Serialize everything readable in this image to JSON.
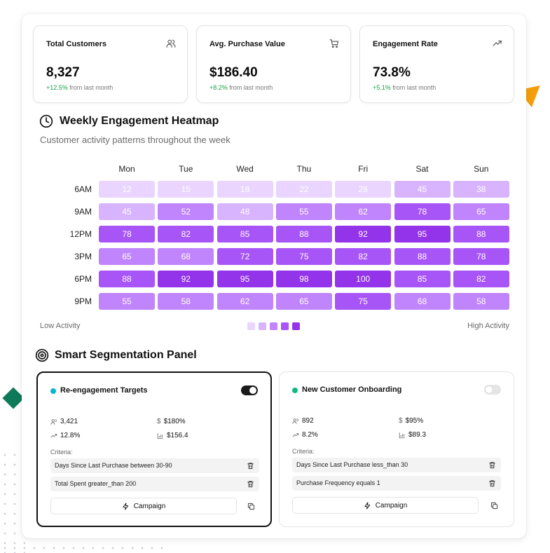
{
  "stats": [
    {
      "title": "Total Customers",
      "value": "8,327",
      "change": "+12.5%",
      "suffix": " from last month",
      "icon": "users-icon"
    },
    {
      "title": "Avg. Purchase Value",
      "value": "$186.40",
      "change": "+8.2%",
      "suffix": " from last month",
      "icon": "cart-icon"
    },
    {
      "title": "Engagement Rate",
      "value": "73.8%",
      "change": "+5.1%",
      "suffix": " from last month",
      "icon": "trend-up-icon"
    }
  ],
  "heatmap": {
    "title": "Weekly Engagement Heatmap",
    "subtitle": "Customer activity patterns throughout the week",
    "days": [
      "Mon",
      "Tue",
      "Wed",
      "Thu",
      "Fri",
      "Sat",
      "Sun"
    ],
    "times": [
      "6AM",
      "9AM",
      "12PM",
      "3PM",
      "6PM",
      "9PM"
    ],
    "values": [
      [
        12,
        15,
        18,
        22,
        28,
        45,
        38
      ],
      [
        45,
        52,
        48,
        55,
        62,
        78,
        65
      ],
      [
        78,
        82,
        85,
        88,
        92,
        95,
        88
      ],
      [
        65,
        68,
        72,
        75,
        82,
        88,
        78
      ],
      [
        88,
        92,
        95,
        98,
        100,
        85,
        82
      ],
      [
        55,
        58,
        62,
        65,
        75,
        68,
        58
      ]
    ],
    "legend_low": "Low Activity",
    "legend_high": "High Activity",
    "legend_colors": [
      "#e9d5ff",
      "#d8b4fe",
      "#c084fc",
      "#a855f7",
      "#9333ea"
    ]
  },
  "segmentation": {
    "title": "Smart Segmentation Panel",
    "criteria_label": "Criteria:",
    "campaign_label": "Campaign",
    "segments": [
      {
        "name": "Re-engagement Targets",
        "dot_color": "#06b6d4",
        "enabled": true,
        "customers": "3,421",
        "value": "$180%",
        "rate": "12.8%",
        "avg": "$156.4",
        "criteria": [
          "Days Since Last Purchase between 30-90",
          "Total Spent greater_than 200"
        ]
      },
      {
        "name": "New Customer Onboarding",
        "dot_color": "#10b981",
        "enabled": false,
        "customers": "892",
        "value": "$95%",
        "rate": "8.2%",
        "avg": "$89.3",
        "criteria": [
          "Days Since Last Purchase less_than 30",
          "Purchase Frequency equals 1"
        ]
      }
    ]
  }
}
